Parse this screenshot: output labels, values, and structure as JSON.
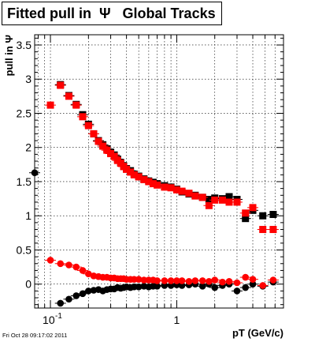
{
  "title": "Fitted pull in  Ψ   Global Tracks",
  "footer": "Fri Oct 28 09:17:02 2011",
  "chart_data": {
    "type": "scatter",
    "title": "Fitted pull in  Ψ   Global Tracks",
    "xlabel": "pT (GeV/c)",
    "ylabel": "pull in Ψ",
    "xscale": "log",
    "xlim": [
      0.075,
      7.0
    ],
    "ylim": [
      -0.35,
      3.65
    ],
    "grid": true,
    "xticks": [
      {
        "value": 0.1,
        "label": "10",
        "sup": "-1"
      },
      {
        "value": 1,
        "label": "1"
      }
    ],
    "yticks": [
      0,
      0.5,
      1,
      1.5,
      2,
      2.5,
      3,
      3.5
    ],
    "series": [
      {
        "marker": "square",
        "color": "#000000",
        "points": [
          [
            0.12,
            2.92
          ],
          [
            0.14,
            2.76
          ],
          [
            0.16,
            2.63
          ],
          [
            0.18,
            2.48
          ],
          [
            0.2,
            2.34
          ],
          [
            0.22,
            2.2
          ],
          [
            0.24,
            2.1
          ],
          [
            0.26,
            2.04
          ],
          [
            0.28,
            1.98
          ],
          [
            0.3,
            1.93
          ],
          [
            0.32,
            1.89
          ],
          [
            0.34,
            1.83
          ],
          [
            0.36,
            1.78
          ],
          [
            0.38,
            1.73
          ],
          [
            0.4,
            1.69
          ],
          [
            0.43,
            1.66
          ],
          [
            0.46,
            1.61
          ],
          [
            0.5,
            1.58
          ],
          [
            0.55,
            1.54
          ],
          [
            0.6,
            1.51
          ],
          [
            0.65,
            1.49
          ],
          [
            0.7,
            1.47
          ],
          [
            0.8,
            1.44
          ],
          [
            0.9,
            1.42
          ],
          [
            1.0,
            1.39
          ],
          [
            1.1,
            1.35
          ],
          [
            1.25,
            1.32
          ],
          [
            1.4,
            1.3
          ],
          [
            1.6,
            1.27
          ],
          [
            1.8,
            1.24
          ],
          [
            2.0,
            1.26
          ],
          [
            2.3,
            1.25
          ],
          [
            2.6,
            1.28
          ],
          [
            3.0,
            1.24
          ],
          [
            3.5,
            0.96
          ],
          [
            4.0,
            1.08
          ],
          [
            4.8,
            1.0
          ],
          [
            5.8,
            1.02
          ]
        ]
      },
      {
        "marker": "square",
        "color": "#ff0000",
        "points": [
          [
            0.1,
            2.62
          ],
          [
            0.12,
            2.91
          ],
          [
            0.14,
            2.75
          ],
          [
            0.16,
            2.62
          ],
          [
            0.18,
            2.45
          ],
          [
            0.2,
            2.32
          ],
          [
            0.22,
            2.2
          ],
          [
            0.24,
            2.09
          ],
          [
            0.26,
            2.02
          ],
          [
            0.28,
            1.96
          ],
          [
            0.3,
            1.91
          ],
          [
            0.32,
            1.87
          ],
          [
            0.34,
            1.81
          ],
          [
            0.36,
            1.77
          ],
          [
            0.38,
            1.72
          ],
          [
            0.4,
            1.68
          ],
          [
            0.43,
            1.64
          ],
          [
            0.46,
            1.6
          ],
          [
            0.5,
            1.57
          ],
          [
            0.55,
            1.53
          ],
          [
            0.6,
            1.5
          ],
          [
            0.65,
            1.47
          ],
          [
            0.7,
            1.45
          ],
          [
            0.8,
            1.42
          ],
          [
            0.9,
            1.41
          ],
          [
            1.0,
            1.38
          ],
          [
            1.1,
            1.36
          ],
          [
            1.25,
            1.33
          ],
          [
            1.4,
            1.29
          ],
          [
            1.6,
            1.27
          ],
          [
            1.8,
            1.15
          ],
          [
            2.0,
            1.23
          ],
          [
            2.3,
            1.23
          ],
          [
            2.6,
            1.2
          ],
          [
            3.0,
            1.2
          ],
          [
            3.5,
            1.04
          ],
          [
            4.0,
            1.12
          ],
          [
            4.8,
            0.8
          ],
          [
            5.8,
            0.8
          ]
        ]
      },
      {
        "marker": "circle",
        "color": "#000000",
        "points": [
          [
            0.075,
            1.63
          ],
          [
            0.12,
            -0.28
          ],
          [
            0.14,
            -0.22
          ],
          [
            0.16,
            -0.17
          ],
          [
            0.18,
            -0.14
          ],
          [
            0.2,
            -0.1
          ],
          [
            0.22,
            -0.09
          ],
          [
            0.24,
            -0.08
          ],
          [
            0.26,
            -0.1
          ],
          [
            0.28,
            -0.08
          ],
          [
            0.3,
            -0.07
          ],
          [
            0.32,
            -0.07
          ],
          [
            0.34,
            -0.05
          ],
          [
            0.36,
            -0.06
          ],
          [
            0.38,
            -0.05
          ],
          [
            0.4,
            -0.04
          ],
          [
            0.43,
            -0.05
          ],
          [
            0.46,
            -0.04
          ],
          [
            0.5,
            -0.04
          ],
          [
            0.55,
            -0.03
          ],
          [
            0.6,
            -0.04
          ],
          [
            0.65,
            -0.03
          ],
          [
            0.7,
            -0.03
          ],
          [
            0.8,
            -0.02
          ],
          [
            0.9,
            -0.02
          ],
          [
            1.0,
            -0.01
          ],
          [
            1.1,
            -0.02
          ],
          [
            1.25,
            -0.01
          ],
          [
            1.4,
            0.0
          ],
          [
            1.6,
            -0.03
          ],
          [
            1.8,
            0.0
          ],
          [
            2.0,
            -0.05
          ],
          [
            2.3,
            -0.02
          ],
          [
            2.6,
            0.0
          ],
          [
            3.0,
            -0.1
          ],
          [
            3.5,
            -0.05
          ],
          [
            4.0,
            0.0
          ],
          [
            4.8,
            -0.03
          ],
          [
            5.8,
            0.03
          ]
        ]
      },
      {
        "marker": "circle",
        "color": "#ff0000",
        "points": [
          [
            0.1,
            0.35
          ],
          [
            0.12,
            0.3
          ],
          [
            0.14,
            0.28
          ],
          [
            0.16,
            0.25
          ],
          [
            0.18,
            0.2
          ],
          [
            0.2,
            0.15
          ],
          [
            0.22,
            0.12
          ],
          [
            0.24,
            0.11
          ],
          [
            0.26,
            0.1
          ],
          [
            0.28,
            0.1
          ],
          [
            0.3,
            0.09
          ],
          [
            0.32,
            0.09
          ],
          [
            0.34,
            0.08
          ],
          [
            0.36,
            0.08
          ],
          [
            0.38,
            0.08
          ],
          [
            0.4,
            0.07
          ],
          [
            0.43,
            0.07
          ],
          [
            0.46,
            0.07
          ],
          [
            0.5,
            0.07
          ],
          [
            0.55,
            0.06
          ],
          [
            0.6,
            0.06
          ],
          [
            0.65,
            0.06
          ],
          [
            0.7,
            0.05
          ],
          [
            0.8,
            0.05
          ],
          [
            0.9,
            0.05
          ],
          [
            1.0,
            0.05
          ],
          [
            1.1,
            0.05
          ],
          [
            1.25,
            0.04
          ],
          [
            1.4,
            0.05
          ],
          [
            1.6,
            0.05
          ],
          [
            1.8,
            0.04
          ],
          [
            2.0,
            0.06
          ],
          [
            2.3,
            0.03
          ],
          [
            2.6,
            0.04
          ],
          [
            3.0,
            0.02
          ],
          [
            3.5,
            0.1
          ],
          [
            4.0,
            0.07
          ],
          [
            4.8,
            -0.02
          ],
          [
            5.8,
            0.06
          ]
        ]
      }
    ]
  }
}
